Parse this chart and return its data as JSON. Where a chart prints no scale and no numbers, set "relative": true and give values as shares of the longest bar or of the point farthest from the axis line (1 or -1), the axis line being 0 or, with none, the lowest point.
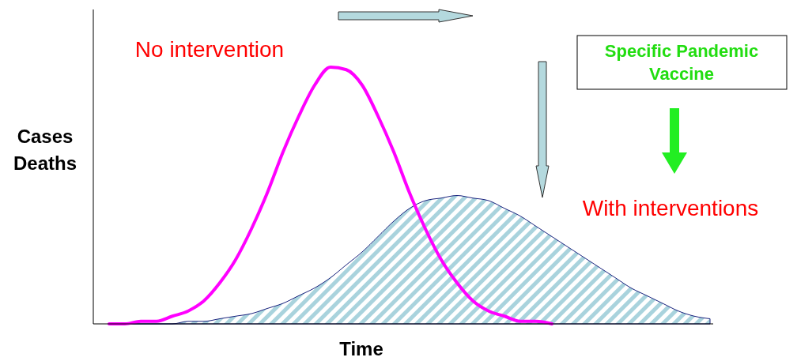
{
  "chart_data": {
    "type": "line",
    "relative": true,
    "xlabel": "Time",
    "ylabel": "Cases\nDeaths",
    "categories": [
      null,
      null,
      null,
      null,
      null,
      null,
      null,
      null,
      null,
      null,
      null,
      null,
      null,
      null,
      null,
      null,
      null,
      null,
      null,
      null,
      null,
      null,
      null,
      null,
      null,
      null,
      null,
      null,
      null,
      null,
      null,
      null,
      null,
      null,
      null,
      null,
      null,
      null,
      null
    ],
    "series": [
      {
        "name": "No intervention",
        "color": "#ff00ff",
        "values": [
          0,
          0,
          0.01,
          0.01,
          0.03,
          0.05,
          0.09,
          0.16,
          0.25,
          0.37,
          0.51,
          0.67,
          0.81,
          0.93,
          1,
          0.99,
          0.93,
          0.81,
          0.67,
          0.51,
          0.37,
          0.25,
          0.16,
          0.09,
          0.05,
          0.03,
          0.01,
          0.01,
          0,
          null,
          null,
          null,
          null,
          null,
          null,
          null,
          null,
          null,
          null
        ]
      },
      {
        "name": "With interventions",
        "type": "area",
        "color": "#1a237e",
        "values": [
          0,
          0,
          0,
          0,
          0,
          0.01,
          0.01,
          0.02,
          0.03,
          0.04,
          0.06,
          0.08,
          0.11,
          0.14,
          0.18,
          0.23,
          0.28,
          0.34,
          0.4,
          0.45,
          0.48,
          0.49,
          0.5,
          0.49,
          0.48,
          0.45,
          0.42,
          0.38,
          0.34,
          0.3,
          0.26,
          0.22,
          0.18,
          0.14,
          0.11,
          0.08,
          0.05,
          0.03,
          0.02
        ]
      }
    ],
    "annotations": [
      "Specific Pandemic Vaccine"
    ]
  }
}
